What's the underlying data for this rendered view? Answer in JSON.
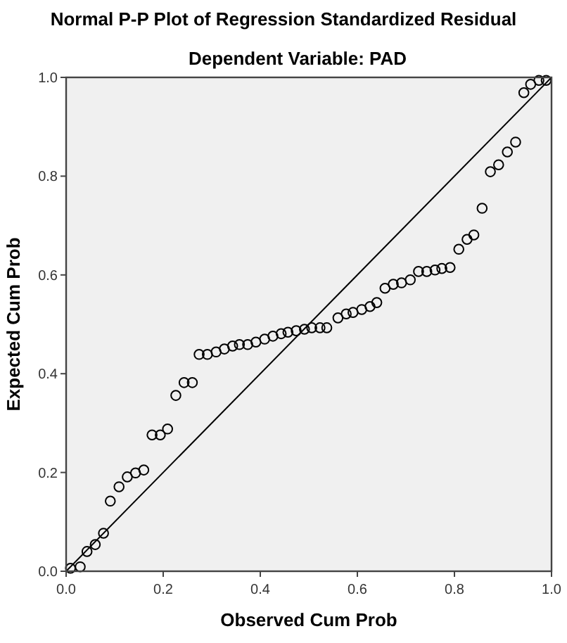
{
  "chart_data": {
    "type": "scatter",
    "title": "Normal P-P Plot of Regression Standardized Residual",
    "subtitle": "Dependent Variable: PAD",
    "xlabel": "Observed Cum Prob",
    "ylabel": "Expected Cum Prob",
    "xlim": [
      0,
      1
    ],
    "ylim": [
      0,
      1
    ],
    "xticks": [
      {
        "value": 0,
        "label": "0.0"
      },
      {
        "value": 0.2,
        "label": "0.2"
      },
      {
        "value": 0.4,
        "label": "0.4"
      },
      {
        "value": 0.6,
        "label": "0.6"
      },
      {
        "value": 0.8,
        "label": "0.8"
      },
      {
        "value": 1,
        "label": "1.0"
      }
    ],
    "yticks": [
      {
        "value": 0,
        "label": "0.0"
      },
      {
        "value": 0.2,
        "label": "0.2"
      },
      {
        "value": 0.4,
        "label": "0.4"
      },
      {
        "value": 0.6,
        "label": "0.6"
      },
      {
        "value": 0.8,
        "label": "0.8"
      },
      {
        "value": 1,
        "label": "1.0"
      }
    ],
    "grid": false,
    "marker": "circle",
    "series": [
      {
        "color": "#000000",
        "x": [
          0.009,
          0.029,
          0.043,
          0.06,
          0.077,
          0.091,
          0.109,
          0.126,
          0.143,
          0.16,
          0.177,
          0.194,
          0.209,
          0.226,
          0.243,
          0.26,
          0.274,
          0.291,
          0.309,
          0.326,
          0.343,
          0.357,
          0.374,
          0.391,
          0.409,
          0.426,
          0.443,
          0.457,
          0.474,
          0.491,
          0.506,
          0.523,
          0.537,
          0.56,
          0.577,
          0.591,
          0.609,
          0.626,
          0.64,
          0.657,
          0.674,
          0.691,
          0.709,
          0.726,
          0.743,
          0.76,
          0.774,
          0.791,
          0.809,
          0.826,
          0.84,
          0.857,
          0.874,
          0.891,
          0.909,
          0.926,
          0.943,
          0.957,
          0.974,
          0.989
        ],
        "values": [
          0.006,
          0.009,
          0.04,
          0.054,
          0.077,
          0.142,
          0.171,
          0.191,
          0.199,
          0.205,
          0.276,
          0.276,
          0.288,
          0.356,
          0.382,
          0.382,
          0.439,
          0.439,
          0.444,
          0.45,
          0.456,
          0.459,
          0.459,
          0.464,
          0.47,
          0.476,
          0.481,
          0.484,
          0.487,
          0.49,
          0.493,
          0.493,
          0.493,
          0.513,
          0.521,
          0.524,
          0.53,
          0.536,
          0.544,
          0.573,
          0.581,
          0.584,
          0.59,
          0.607,
          0.607,
          0.61,
          0.613,
          0.615,
          0.652,
          0.672,
          0.681,
          0.735,
          0.809,
          0.823,
          0.849,
          0.869,
          0.969,
          0.986,
          0.994,
          0.994
        ]
      },
      {
        "type": "line",
        "color": "#000000",
        "x": [
          0,
          1
        ],
        "values": [
          0,
          1
        ],
        "marker": "none",
        "line_style": "solid"
      }
    ]
  }
}
